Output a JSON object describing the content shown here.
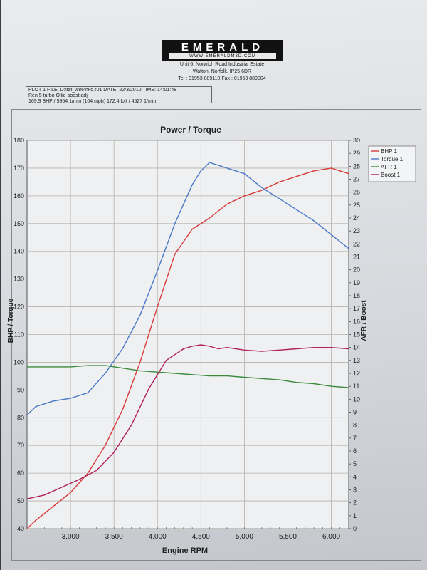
{
  "header": {
    "logo_text": "EMERALD",
    "logo_url": "WWW.EMERALDM3D.COM",
    "address_line1": "Unit 6, Norwich Road Industrial Estate",
    "address_line2": "Watton, Norfolk, IP25 6DR",
    "phone_line": "Tel : 01953 889110    Fax : 01953 889004"
  },
  "info_box": {
    "line1": "PLOT 1 FILE: D:\\tat_w86\\hkd.r01  DATE: 22/3/2010  TIME: 14:01:48",
    "line2": "Ren 5 turbo Ollie boost adj",
    "line3": "169.9 BHP / 5954 1/min (104 mph)     172.4 lbft / 4527 1/min"
  },
  "colors": {
    "bhp": "#d83a3a",
    "torque": "#4a78c8",
    "afr": "#3a8a3a",
    "boost": "#b0205a"
  },
  "chart_data": {
    "type": "line",
    "title": "Power / Torque",
    "xlabel": "Engine RPM",
    "ylabel_left": "BHP / Torque",
    "ylabel_right": "AFR / Boost",
    "xlim": [
      2500,
      6200
    ],
    "ylim_left": [
      40,
      180
    ],
    "ylim_right": [
      0,
      30
    ],
    "x_ticks": [
      3000,
      3500,
      4000,
      4500,
      5000,
      5500,
      6000
    ],
    "x_tick_labels": [
      "3,000",
      "3,500",
      "4,000",
      "4,500",
      "5,000",
      "5,500",
      "6,000"
    ],
    "y_left_ticks": [
      40,
      50,
      60,
      70,
      80,
      90,
      100,
      110,
      120,
      130,
      140,
      150,
      160,
      170,
      180
    ],
    "y_right_ticks": [
      0,
      1,
      2,
      3,
      4,
      5,
      6,
      7,
      8,
      9,
      10,
      11,
      12,
      13,
      14,
      15,
      16,
      17,
      18,
      19,
      20,
      21,
      22,
      23,
      24,
      25,
      26,
      27,
      28,
      29,
      30
    ],
    "grid": true,
    "legend_position": "top-right",
    "series": [
      {
        "name": "BHP 1",
        "axis": "left",
        "color_key": "bhp",
        "x": [
          2500,
          2600,
          2800,
          3000,
          3200,
          3400,
          3600,
          3800,
          4000,
          4200,
          4400,
          4600,
          4800,
          5000,
          5200,
          5400,
          5600,
          5800,
          6000,
          6200
        ],
        "y": [
          40,
          43,
          48,
          53,
          60,
          70,
          83,
          100,
          120,
          139,
          148,
          152,
          157,
          160,
          162,
          165,
          167,
          169,
          170,
          168
        ]
      },
      {
        "name": "Torque 1",
        "axis": "left",
        "color_key": "torque",
        "x": [
          2500,
          2600,
          2800,
          3000,
          3200,
          3400,
          3600,
          3800,
          4000,
          4200,
          4400,
          4500,
          4600,
          4700,
          4800,
          5000,
          5200,
          5400,
          5600,
          5800,
          6000,
          6200
        ],
        "y": [
          81,
          84,
          86,
          87,
          89,
          96,
          105,
          117,
          133,
          150,
          164,
          169,
          172,
          171,
          170,
          168,
          163,
          159,
          155,
          151,
          146,
          141
        ]
      },
      {
        "name": "AFR 1",
        "axis": "right",
        "color_key": "afr",
        "x": [
          2500,
          2800,
          3000,
          3200,
          3400,
          3600,
          3800,
          4000,
          4200,
          4400,
          4600,
          4800,
          5000,
          5200,
          5400,
          5600,
          5800,
          6000,
          6200
        ],
        "y": [
          12.5,
          12.5,
          12.5,
          12.6,
          12.6,
          12.4,
          12.2,
          12.1,
          12.0,
          11.9,
          11.8,
          11.8,
          11.7,
          11.6,
          11.5,
          11.3,
          11.2,
          11.0,
          10.9
        ]
      },
      {
        "name": "Boost 1",
        "axis": "right",
        "color_key": "boost",
        "x": [
          2500,
          2700,
          2900,
          3100,
          3300,
          3500,
          3700,
          3900,
          4100,
          4300,
          4400,
          4500,
          4600,
          4700,
          4800,
          5000,
          5200,
          5400,
          5600,
          5800,
          6000,
          6200
        ],
        "y": [
          2.3,
          2.6,
          3.2,
          3.8,
          4.5,
          5.9,
          8.0,
          10.8,
          13.0,
          13.9,
          14.1,
          14.2,
          14.1,
          13.9,
          14.0,
          13.8,
          13.7,
          13.8,
          13.9,
          14.0,
          14.0,
          13.9
        ]
      }
    ]
  }
}
